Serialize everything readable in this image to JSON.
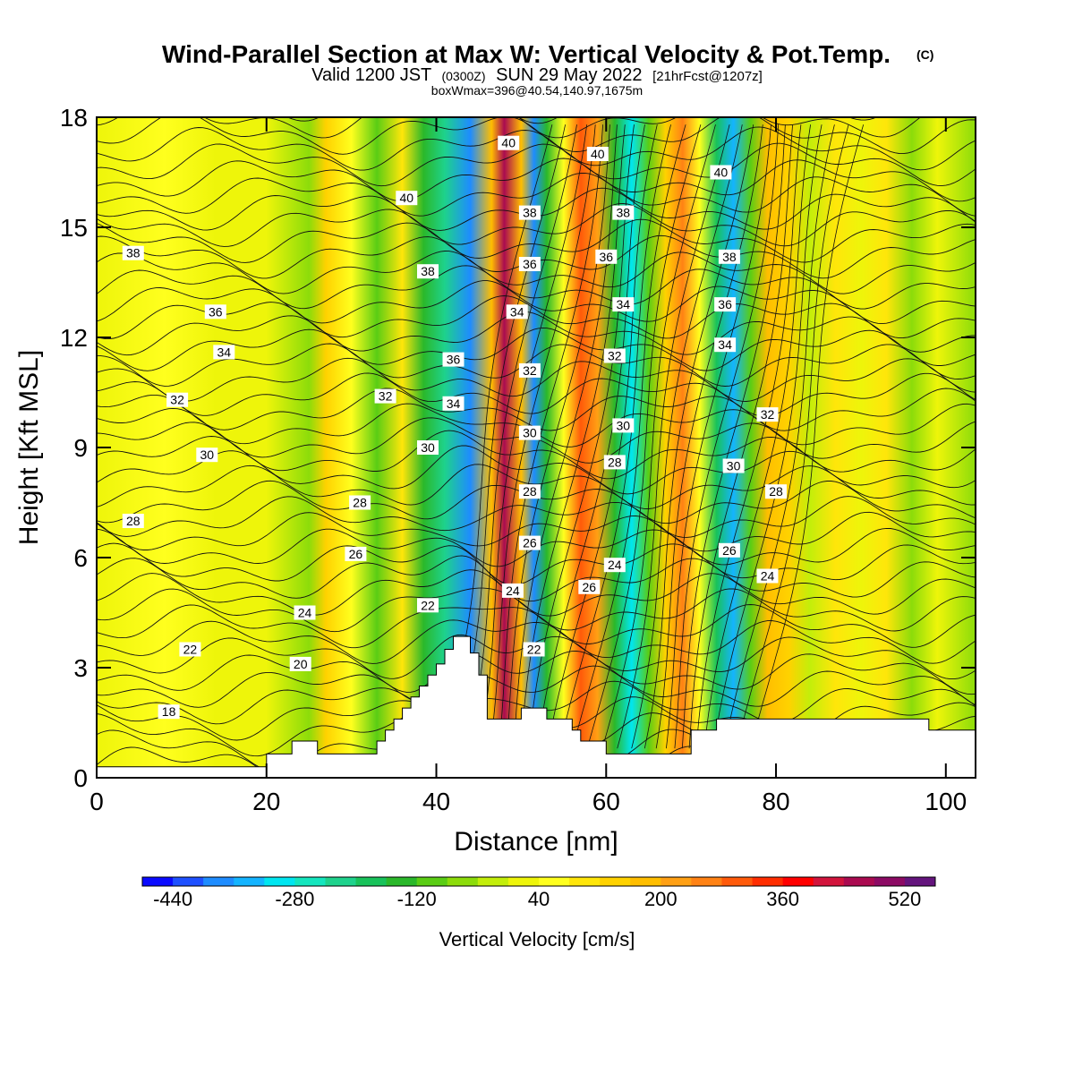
{
  "chart_data": {
    "type": "heatmap",
    "title": "Wind-Parallel Section at Max W: Vertical Velocity & Pot.Temp.",
    "title_mark": "(C)",
    "subtitle": {
      "valid_prefix": "Valid 1200 JST",
      "utc": "(0300Z)",
      "date": "SUN 29 May 2022",
      "forecast": "[21hrFcst@1207z]"
    },
    "info": "boxWmax=396@40.54,140.97,1675m",
    "xlabel": "Distance [nm]",
    "ylabel": "Height [Kft MSL]",
    "xlim": [
      0,
      103.5
    ],
    "ylim": [
      0,
      18
    ],
    "x_ticks": [
      "0",
      "20",
      "40",
      "60",
      "80",
      "100"
    ],
    "y_ticks": [
      "0",
      "3",
      "6",
      "9",
      "12",
      "15",
      "18"
    ],
    "colorbar": {
      "label": "Vertical Velocity [cm/s]",
      "tick_labels": [
        "-440",
        "-280",
        "-120",
        "40",
        "200",
        "360",
        "520"
      ],
      "levels": [
        -480,
        -440,
        -400,
        -360,
        -320,
        -280,
        -240,
        -200,
        -160,
        -120,
        -80,
        -40,
        0,
        40,
        80,
        120,
        160,
        200,
        240,
        280,
        320,
        360,
        400,
        440,
        480,
        520,
        560
      ],
      "colors": [
        "#0a0aff",
        "#1e50ff",
        "#1e8cff",
        "#14b4ff",
        "#00e6f0",
        "#14e6be",
        "#1ed28c",
        "#18c25a",
        "#2ab82a",
        "#5acd14",
        "#8cdc0a",
        "#c3ee0a",
        "#eef50a",
        "#ffff1e",
        "#ffe60a",
        "#ffd200",
        "#ffbe00",
        "#ffa014",
        "#ff8214",
        "#ff5a0a",
        "#ff2d00",
        "#ff0000",
        "#d2143c",
        "#aa0a50",
        "#8c0a64",
        "#64147d"
      ]
    },
    "vertical_velocity_bands": [
      {
        "x": 0,
        "w": 30
      },
      {
        "x": 8,
        "w": 45
      },
      {
        "x": 14,
        "w": 20
      },
      {
        "x": 20,
        "w": 10
      },
      {
        "x": 25,
        "w": -60
      },
      {
        "x": 27,
        "w": 140
      },
      {
        "x": 30,
        "w": 60
      },
      {
        "x": 33,
        "w": -100
      },
      {
        "x": 36,
        "w": 100
      },
      {
        "x": 38.5,
        "w": -140
      },
      {
        "x": 41,
        "w": -230
      },
      {
        "x": 44,
        "w": -400
      },
      {
        "x": 46.5,
        "w": 160
      },
      {
        "x": 48,
        "w": 470
      },
      {
        "x": 50,
        "w": 170
      },
      {
        "x": 51.5,
        "w": -380
      },
      {
        "x": 53,
        "w": -160
      },
      {
        "x": 55,
        "w": 60
      },
      {
        "x": 57,
        "w": 310
      },
      {
        "x": 59,
        "w": 200
      },
      {
        "x": 61,
        "w": -150
      },
      {
        "x": 63,
        "w": -290
      },
      {
        "x": 65,
        "w": -100
      },
      {
        "x": 67,
        "w": 150
      },
      {
        "x": 69,
        "w": 260
      },
      {
        "x": 71,
        "w": 60
      },
      {
        "x": 73,
        "w": -180
      },
      {
        "x": 75,
        "w": -330
      },
      {
        "x": 77,
        "w": -100
      },
      {
        "x": 79,
        "w": 170
      },
      {
        "x": 81.5,
        "w": 120
      },
      {
        "x": 84,
        "w": -20
      },
      {
        "x": 87,
        "w": 80
      },
      {
        "x": 90,
        "w": 30
      },
      {
        "x": 93,
        "w": 100
      },
      {
        "x": 96,
        "w": -60
      },
      {
        "x": 99,
        "w": 20
      },
      {
        "x": 103.5,
        "w": -60
      }
    ],
    "terrain": {
      "x": [
        0,
        20,
        20,
        23,
        23,
        26,
        26,
        33,
        33,
        34,
        34,
        35,
        35,
        36,
        36,
        37,
        37,
        38,
        38,
        39,
        39,
        40,
        40,
        41,
        41,
        42,
        42,
        44,
        44,
        45,
        45,
        46,
        46,
        50,
        50,
        53,
        53,
        56,
        56,
        57,
        57,
        60,
        60,
        62,
        62,
        70,
        70,
        73,
        73,
        78,
        78,
        98,
        98,
        103.5
      ],
      "height": [
        0.3,
        0.3,
        0.65,
        0.65,
        1.0,
        1.0,
        0.65,
        0.65,
        1.0,
        1.0,
        1.3,
        1.3,
        1.6,
        1.6,
        1.9,
        1.9,
        2.2,
        2.2,
        2.5,
        2.5,
        2.8,
        2.8,
        3.1,
        3.1,
        3.5,
        3.5,
        3.85,
        3.85,
        3.4,
        3.4,
        2.8,
        2.8,
        1.6,
        1.6,
        1.9,
        1.9,
        1.6,
        1.6,
        1.3,
        1.3,
        1.0,
        1.0,
        0.65,
        0.65,
        0.65,
        0.65,
        1.3,
        1.3,
        1.6,
        1.6,
        1.6,
        1.6,
        1.3,
        1.3
      ]
    },
    "theta_contours": {
      "levels_labeled": [
        18,
        20,
        22,
        24,
        26,
        28,
        30,
        32,
        34,
        36,
        38,
        40
      ],
      "labels": [
        {
          "x": 8.5,
          "y": 1.8,
          "text": "18"
        },
        {
          "x": 24,
          "y": 3.1,
          "text": "20"
        },
        {
          "x": 11,
          "y": 3.5,
          "text": "22"
        },
        {
          "x": 24.5,
          "y": 4.5,
          "text": "24"
        },
        {
          "x": 4.3,
          "y": 7.0,
          "text": "28"
        },
        {
          "x": 13,
          "y": 8.8,
          "text": "30"
        },
        {
          "x": 9.5,
          "y": 10.3,
          "text": "32"
        },
        {
          "x": 15,
          "y": 11.6,
          "text": "34"
        },
        {
          "x": 14,
          "y": 12.7,
          "text": "36"
        },
        {
          "x": 4.3,
          "y": 14.3,
          "text": "38"
        },
        {
          "x": 30.5,
          "y": 6.1,
          "text": "26"
        },
        {
          "x": 31,
          "y": 7.5,
          "text": "28"
        },
        {
          "x": 39,
          "y": 4.7,
          "text": "22"
        },
        {
          "x": 39,
          "y": 9.0,
          "text": "30"
        },
        {
          "x": 34,
          "y": 10.4,
          "text": "32"
        },
        {
          "x": 42,
          "y": 10.2,
          "text": "34"
        },
        {
          "x": 42,
          "y": 11.4,
          "text": "36"
        },
        {
          "x": 39,
          "y": 13.8,
          "text": "38"
        },
        {
          "x": 36.5,
          "y": 15.8,
          "text": "40"
        },
        {
          "x": 48.5,
          "y": 17.3,
          "text": "40"
        },
        {
          "x": 49,
          "y": 5.1,
          "text": "24"
        },
        {
          "x": 51.5,
          "y": 3.5,
          "text": "22"
        },
        {
          "x": 51,
          "y": 6.4,
          "text": "26"
        },
        {
          "x": 51,
          "y": 7.8,
          "text": "28"
        },
        {
          "x": 51,
          "y": 9.4,
          "text": "30"
        },
        {
          "x": 51,
          "y": 11.1,
          "text": "32"
        },
        {
          "x": 49.5,
          "y": 12.7,
          "text": "34"
        },
        {
          "x": 51,
          "y": 14.0,
          "text": "36"
        },
        {
          "x": 51,
          "y": 15.4,
          "text": "38"
        },
        {
          "x": 58,
          "y": 5.2,
          "text": "26"
        },
        {
          "x": 61,
          "y": 5.8,
          "text": "24"
        },
        {
          "x": 61,
          "y": 8.6,
          "text": "28"
        },
        {
          "x": 62,
          "y": 9.6,
          "text": "30"
        },
        {
          "x": 61,
          "y": 11.5,
          "text": "32"
        },
        {
          "x": 62,
          "y": 12.9,
          "text": "34"
        },
        {
          "x": 60,
          "y": 14.2,
          "text": "36"
        },
        {
          "x": 62,
          "y": 15.4,
          "text": "38"
        },
        {
          "x": 59,
          "y": 17.0,
          "text": "40"
        },
        {
          "x": 74.5,
          "y": 6.2,
          "text": "26"
        },
        {
          "x": 79,
          "y": 5.5,
          "text": "24"
        },
        {
          "x": 75,
          "y": 8.5,
          "text": "30"
        },
        {
          "x": 80,
          "y": 7.8,
          "text": "28"
        },
        {
          "x": 79,
          "y": 9.9,
          "text": "32"
        },
        {
          "x": 74,
          "y": 11.8,
          "text": "34"
        },
        {
          "x": 74,
          "y": 12.9,
          "text": "36"
        },
        {
          "x": 74.5,
          "y": 14.2,
          "text": "38"
        },
        {
          "x": 73.5,
          "y": 16.5,
          "text": "40"
        }
      ]
    },
    "grid": false,
    "legend": "colorbar-bottom"
  }
}
